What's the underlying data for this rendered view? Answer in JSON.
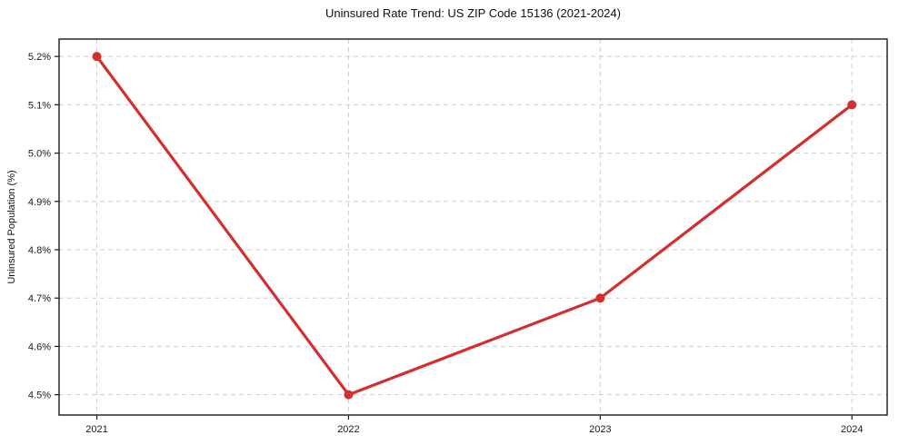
{
  "chart_data": {
    "type": "line",
    "title": "Uninsured Rate Trend: US ZIP Code 15136 (2021-2024)",
    "xlabel": "",
    "ylabel": "Uninsured Population (%)",
    "x": [
      2021,
      2022,
      2023,
      2024
    ],
    "x_tick_labels": [
      "2021",
      "2022",
      "2023",
      "2024"
    ],
    "series": [
      {
        "name": "Uninsured Population (%)",
        "values": [
          5.2,
          4.5,
          4.7,
          5.1
        ]
      }
    ],
    "y_ticks": [
      4.5,
      4.6,
      4.7,
      4.8,
      4.9,
      5.0,
      5.1,
      5.2
    ],
    "y_tick_labels": [
      "4.5%",
      "4.6%",
      "4.7%",
      "4.8%",
      "4.9%",
      "5.0%",
      "5.1%",
      "5.2%"
    ],
    "xlim": [
      2020.85,
      2024.14
    ],
    "ylim": [
      4.458,
      5.236
    ],
    "grid": true,
    "grid_style": "dashed",
    "legend_position": "none",
    "colors": {
      "line": "#d32f2f",
      "marker": "#d32f2f",
      "grid": "#cfcfcf",
      "axis": "#1a1a1a",
      "tick_text": "#1a1a1a",
      "background": "#ffffff"
    }
  }
}
